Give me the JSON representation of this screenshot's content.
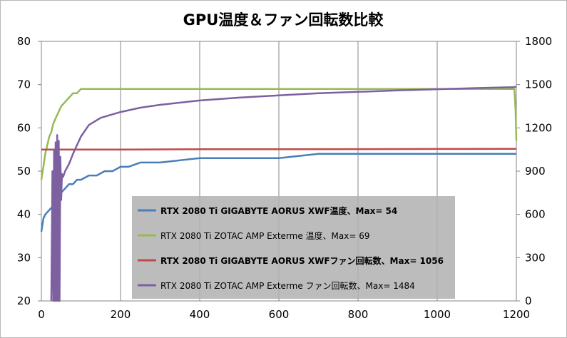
{
  "chart_data": {
    "type": "line",
    "title": "GPU温度＆ファン回転数比較",
    "xlabel": "",
    "ylabel": "",
    "y2label": "",
    "xlim": [
      0,
      1200
    ],
    "ylim": [
      20,
      80
    ],
    "y2lim": [
      0,
      1800
    ],
    "x_ticks": [
      "0",
      "200",
      "400",
      "600",
      "800",
      "1000",
      "1200"
    ],
    "y_ticks": [
      "20",
      "30",
      "40",
      "50",
      "60",
      "70",
      "80"
    ],
    "y2_ticks": [
      "0",
      "300",
      "600",
      "900",
      "1200",
      "1500",
      "1800"
    ],
    "grid": "vertical",
    "legend_position": "center",
    "series": [
      {
        "name": "RTX 2080 Ti GIGABYTE AORUS XWF温度、Max= 54",
        "axis": "left",
        "color": "#4a7ebb",
        "bold": true,
        "x": [
          0,
          5,
          10,
          20,
          30,
          40,
          50,
          60,
          70,
          80,
          90,
          100,
          120,
          140,
          160,
          180,
          200,
          220,
          250,
          300,
          400,
          500,
          600,
          700,
          800,
          900,
          1000,
          1100,
          1200
        ],
        "y": [
          36,
          39,
          40,
          41,
          42,
          44,
          45,
          46,
          47,
          47,
          48,
          48,
          49,
          49,
          50,
          50,
          51,
          51,
          52,
          52,
          53,
          53,
          53,
          54,
          54,
          54,
          54,
          54,
          54
        ]
      },
      {
        "name": "RTX 2080 Ti ZOTAC AMP Exterme 温度、Max= 69",
        "axis": "left",
        "color": "#98b954",
        "bold": false,
        "x": [
          0,
          5,
          10,
          15,
          20,
          25,
          30,
          40,
          50,
          60,
          70,
          80,
          90,
          100,
          150,
          200,
          300,
          400,
          500,
          600,
          700,
          800,
          900,
          1000,
          1100,
          1195,
          1198,
          1200
        ],
        "y": [
          48,
          51,
          54,
          56,
          58,
          59,
          61,
          63,
          65,
          66,
          67,
          68,
          68,
          69,
          69,
          69,
          69,
          69,
          69,
          69,
          69,
          69,
          69,
          69,
          69,
          69,
          64,
          57
        ]
      },
      {
        "name": "RTX 2080 Ti GIGABYTE AORUS XWFファン回転数、Max= 1056",
        "axis": "right",
        "color": "#be4b48",
        "bold": true,
        "x": [
          0,
          200,
          400,
          600,
          800,
          1000,
          1200
        ],
        "y": [
          1050,
          1050,
          1052,
          1052,
          1053,
          1054,
          1055
        ]
      },
      {
        "name": "RTX 2080 Ti ZOTAC AMP Exterme ファン回転数、Max= 1484",
        "axis": "right",
        "color": "#7d60a0",
        "bold": false,
        "x": [
          0,
          25,
          28,
          30,
          32,
          34,
          36,
          38,
          40,
          42,
          44,
          46,
          48,
          50,
          52,
          55,
          60,
          70,
          80,
          90,
          100,
          120,
          150,
          200,
          250,
          300,
          400,
          500,
          600,
          700,
          800,
          900,
          1000,
          1100,
          1190,
          1200
        ],
        "y": [
          null,
          0,
          900,
          0,
          1050,
          0,
          1100,
          0,
          1150,
          0,
          1110,
          0,
          1000,
          700,
          880,
          860,
          900,
          950,
          1020,
          1080,
          1140,
          1220,
          1270,
          1310,
          1340,
          1360,
          1390,
          1410,
          1425,
          1440,
          1450,
          1460,
          1468,
          1476,
          1482,
          1484
        ]
      }
    ]
  }
}
